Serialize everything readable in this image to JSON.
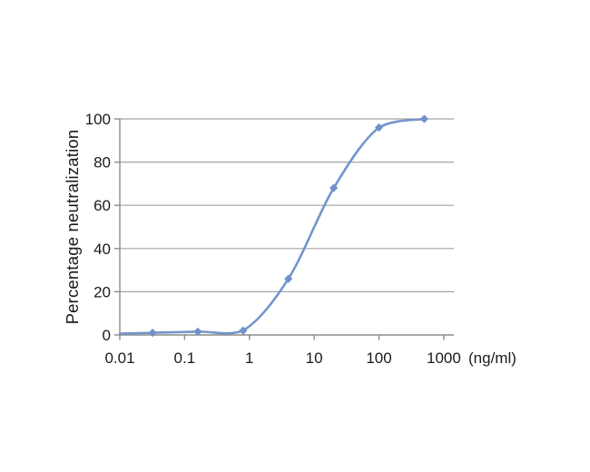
{
  "figure": {
    "background": "#ffffff"
  },
  "chart_data": {
    "type": "line",
    "title": "",
    "ylabel": "Percentage neutralization",
    "xlabel": "(ng/ml)",
    "x_scale": "log",
    "x": [
      0.032,
      0.16,
      0.8,
      4,
      20,
      100,
      500
    ],
    "y": [
      1,
      1.5,
      2,
      26,
      68,
      96,
      100
    ],
    "curve_start": {
      "x_at_axis": true,
      "y": 0.6
    },
    "x_ticks": [
      0.01,
      0.1,
      1,
      10,
      100,
      1000
    ],
    "x_tick_labels": [
      "0.01",
      "0.1",
      "1",
      "10",
      "100",
      "1000"
    ],
    "y_ticks": [
      0,
      20,
      40,
      60,
      80,
      100
    ],
    "y_tick_labels": [
      "0",
      "20",
      "40",
      "60",
      "80",
      "100"
    ],
    "xlim": [
      0.01,
      1430
    ],
    "ylim": [
      0,
      100
    ],
    "grid": "horizontal",
    "legend": "none",
    "marker": "diamond",
    "line_color": "#7495CC",
    "marker_color": "#7090C9",
    "gridline_color": "#A3A3A3",
    "axis_color": "#8A8A8A",
    "text_color": "#1a1a1a"
  }
}
